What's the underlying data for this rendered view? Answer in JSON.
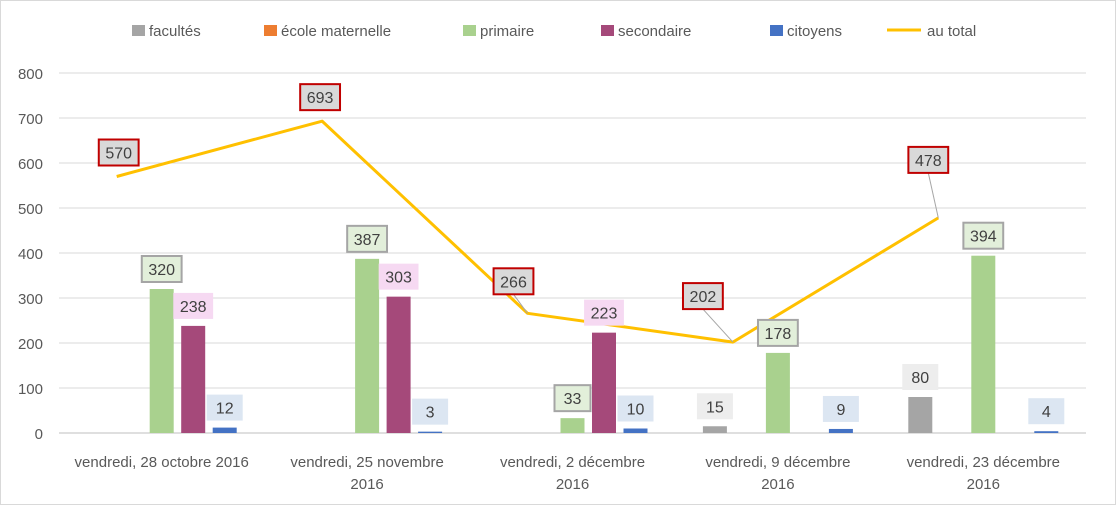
{
  "chart_data": {
    "type": "bar",
    "categories": [
      [
        "vendredi, 28 octobre 2016"
      ],
      [
        "vendredi, 25 novembre",
        "2016"
      ],
      [
        "vendredi, 2 décembre",
        "2016"
      ],
      [
        "vendredi, 9 décembre",
        "2016"
      ],
      [
        "vendredi, 23 décembre",
        "2016"
      ]
    ],
    "series": [
      {
        "name": "facultés",
        "color": "#a5a5a5",
        "label_bg": "#ededed",
        "label_border": "",
        "values": [
          0,
          0,
          0,
          15,
          80
        ],
        "labels": [
          null,
          null,
          null,
          "15",
          "80"
        ]
      },
      {
        "name": "école maternelle",
        "color": "#ed7d31",
        "label_bg": "",
        "label_border": "",
        "values": [
          0,
          0,
          0,
          0,
          0
        ],
        "labels": [
          null,
          null,
          null,
          null,
          null
        ]
      },
      {
        "name": "primaire",
        "color": "#a9d18e",
        "label_bg": "#e2efda",
        "label_border": "#a5a5a5",
        "values": [
          320,
          387,
          33,
          178,
          394
        ],
        "labels": [
          "320",
          "387",
          "33",
          "178",
          "394"
        ]
      },
      {
        "name": "secondaire",
        "color": "#a5497a",
        "label_bg": "#f6d9f2",
        "label_border": "",
        "values": [
          238,
          303,
          223,
          0,
          0
        ],
        "labels": [
          "238",
          "303",
          "223",
          null,
          null
        ]
      },
      {
        "name": "citoyens",
        "color": "#4472c4",
        "label_bg": "#dce6f2",
        "label_border": "",
        "values": [
          12,
          3,
          10,
          9,
          4
        ],
        "labels": [
          "12",
          "3",
          "10",
          "9",
          "4"
        ]
      }
    ],
    "line_series": {
      "name": "au total",
      "color": "#ffc000",
      "label_bg": "#d9d9d9",
      "label_border": "#c00000",
      "values": [
        570,
        693,
        266,
        202,
        478
      ],
      "labels": [
        "570",
        "693",
        "266",
        "202",
        "478"
      ]
    },
    "y_ticks": [
      "0",
      "100",
      "200",
      "300",
      "400",
      "500",
      "600",
      "700",
      "800"
    ],
    "ylim": [
      0,
      800
    ],
    "grid": true,
    "legend_position": "top"
  }
}
